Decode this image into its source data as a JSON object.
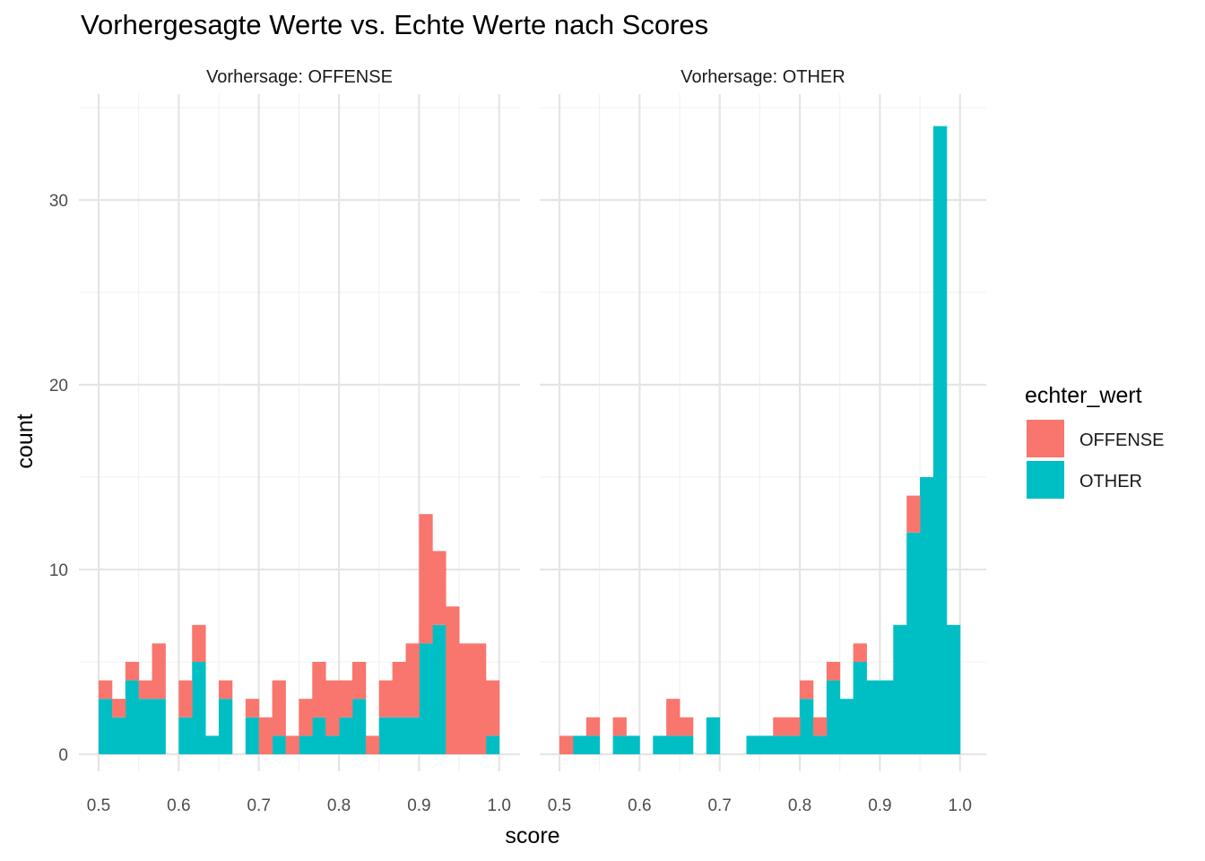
{
  "chart_data": {
    "type": "bar",
    "title": "Vorhergesagte Werte vs. Echte Werte nach Scores",
    "xlabel": "score",
    "ylabel": "count",
    "xlim": [
      0.5,
      1.0
    ],
    "ylim": [
      0,
      35
    ],
    "x_ticks": [
      "0.5",
      "0.6",
      "0.7",
      "0.8",
      "0.9",
      "1.0"
    ],
    "y_ticks": [
      "0",
      "10",
      "20",
      "30"
    ],
    "binwidth": 0.01667,
    "grid": true,
    "legend": {
      "title": "echter_wert",
      "position": "right",
      "entries": [
        {
          "name": "OFFENSE",
          "color": "#F8766D"
        },
        {
          "name": "OTHER",
          "color": "#00BFC4"
        }
      ]
    },
    "stacking": "stacked",
    "panels": [
      {
        "strip_label": "Vorhersage: OFFENSE",
        "bin_centers": [
          0.5083,
          0.525,
          0.5417,
          0.5583,
          0.575,
          0.5917,
          0.6083,
          0.625,
          0.6417,
          0.6583,
          0.675,
          0.6917,
          0.7083,
          0.725,
          0.7417,
          0.7583,
          0.775,
          0.7917,
          0.8083,
          0.825,
          0.8417,
          0.8583,
          0.875,
          0.8917,
          0.9083,
          0.925,
          0.9417,
          0.9583,
          0.975,
          0.9917
        ],
        "series": [
          {
            "name": "OTHER",
            "values": [
              3,
              2,
              4,
              3,
              3,
              0,
              2,
              5,
              1,
              3,
              0,
              2,
              0,
              1,
              0,
              1,
              2,
              1,
              2,
              3,
              0,
              2,
              2,
              2,
              6,
              7,
              0,
              0,
              0,
              1
            ]
          },
          {
            "name": "OFFENSE",
            "values": [
              1,
              1,
              1,
              1,
              3,
              0,
              2,
              2,
              0,
              1,
              0,
              1,
              2,
              3,
              1,
              2,
              3,
              3,
              2,
              2,
              1,
              2,
              3,
              4,
              7,
              4,
              8,
              6,
              6,
              3
            ]
          }
        ]
      },
      {
        "strip_label": "Vorhersage: OTHER",
        "bin_centers": [
          0.5083,
          0.525,
          0.5417,
          0.5583,
          0.575,
          0.5917,
          0.6083,
          0.625,
          0.6417,
          0.6583,
          0.675,
          0.6917,
          0.7083,
          0.725,
          0.7417,
          0.7583,
          0.775,
          0.7917,
          0.8083,
          0.825,
          0.8417,
          0.8583,
          0.875,
          0.8917,
          0.9083,
          0.925,
          0.9417,
          0.9583,
          0.975,
          0.9917
        ],
        "series": [
          {
            "name": "OTHER",
            "values": [
              0,
              1,
              1,
              0,
              1,
              1,
              0,
              1,
              1,
              1,
              0,
              2,
              0,
              0,
              1,
              1,
              1,
              1,
              3,
              1,
              4,
              3,
              5,
              4,
              4,
              7,
              12,
              15,
              34,
              7
            ]
          },
          {
            "name": "OFFENSE",
            "values": [
              1,
              0,
              1,
              0,
              1,
              0,
              0,
              0,
              2,
              1,
              0,
              0,
              0,
              0,
              0,
              0,
              1,
              1,
              1,
              1,
              1,
              0,
              1,
              0,
              0,
              0,
              2,
              0,
              0,
              0
            ]
          }
        ]
      }
    ]
  }
}
